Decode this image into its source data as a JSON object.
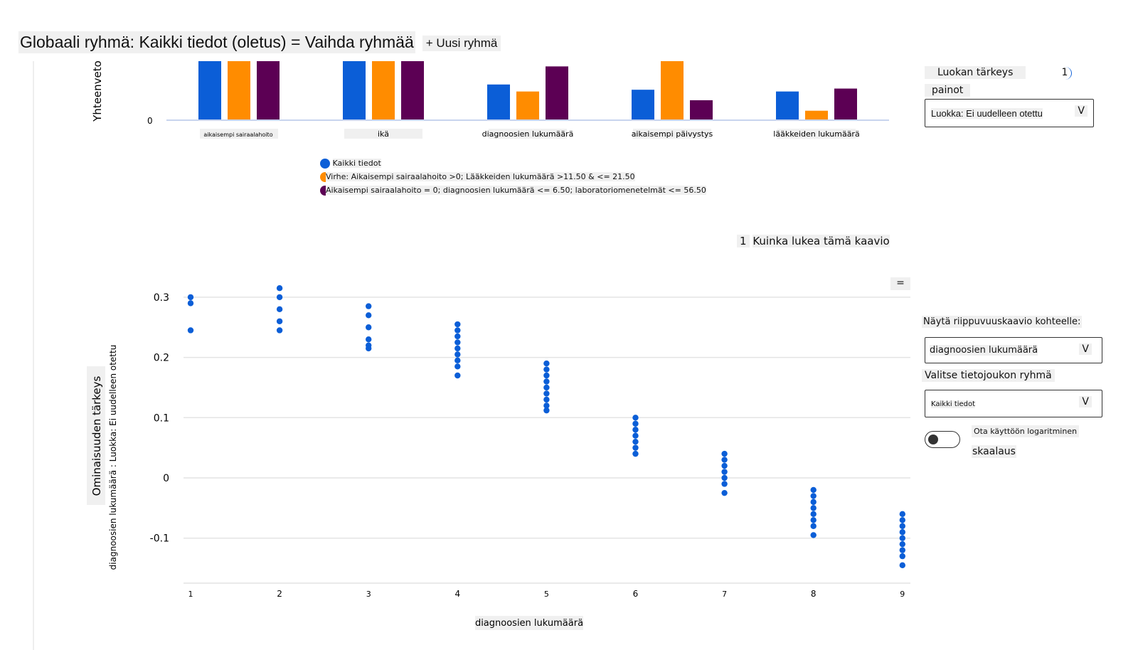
{
  "header": {
    "title": "Globaali ryhmä: Kaikki tiedot (oletus) = Vaihda ryhmää",
    "new_group": "+ Uusi ryhmä"
  },
  "colors": {
    "blue": "#0b5ed7",
    "orange": "#ff8c00",
    "purple": "#5c0054"
  },
  "right_panel": {
    "class_importance": "Luokan tärkeys",
    "info_icon": "1",
    "weights": "painot",
    "class_dropdown": "Luokka: Ei uudelleen otettu",
    "chevron": "V",
    "dependence_label": "Näytä riippuvuuskaavio kohteelle:",
    "feature_dropdown": "diagnoosien lukumäärä",
    "cohort_label": "Valitse tietojoukon ryhmä",
    "cohort_dropdown": "Kaikki tiedot",
    "log_toggle_label_1": "Ota käyttöön logaritminen",
    "log_toggle_label_2": "skaalaus",
    "log_enabled": false
  },
  "how_to_read": {
    "icon": "1",
    "label": "Kuinka lukea tämä kaavio"
  },
  "menu_icon": "=",
  "chart_data": [
    {
      "type": "bar",
      "ylabel": "Yhteenveto",
      "yticks": [
        "0"
      ],
      "categories": [
        "aikaisempi sairaalahoito",
        "ikä",
        "diagnoosien lukumäärä",
        "aikaisempi päivystys",
        "lääkkeiden lukumäärä"
      ],
      "series": [
        {
          "name": "Kaikki tiedot",
          "values": [
            1.0,
            1.0,
            0.6,
            0.51,
            0.48
          ]
        },
        {
          "name": "Virhe: Aikaisempi sairaalahoito >0; Lääkkeiden lukumäärä >11.50 & <= 21.50",
          "values": [
            1.0,
            1.0,
            0.48,
            1.0,
            0.15
          ]
        },
        {
          "name": "Aikaisempi sairaalahoito = 0; diagnoosien lukumäärä <= 6.50; laboratoriomenetelmät <= 56.50",
          "values": [
            1.0,
            1.0,
            0.91,
            0.33,
            0.53
          ]
        }
      ]
    },
    {
      "type": "scatter",
      "xlabel": "diagnoosien lukumäärä",
      "ylabel": "Ominaisuuden tärkeys",
      "ylabel2": "diagnoosien lukumäärä : Luokka: Ei uudelleen otettu",
      "yticks": [
        "0.3",
        "0.2",
        "0.1",
        "0",
        "-0.1"
      ],
      "ytick_values": [
        0.3,
        0.2,
        0.1,
        0,
        -0.1
      ],
      "xticks": [
        "1",
        "2",
        "3",
        "4",
        "5",
        "6",
        "7",
        "8",
        "9"
      ],
      "ylim": [
        -0.16,
        0.32
      ],
      "points": [
        {
          "x": 1,
          "y": [
            0.3,
            0.29,
            0.245
          ]
        },
        {
          "x": 2,
          "y": [
            0.315,
            0.3,
            0.28,
            0.26,
            0.245
          ]
        },
        {
          "x": 3,
          "y": [
            0.285,
            0.27,
            0.25,
            0.23,
            0.22,
            0.215
          ]
        },
        {
          "x": 4,
          "y": [
            0.255,
            0.245,
            0.235,
            0.225,
            0.215,
            0.205,
            0.195,
            0.185,
            0.17
          ]
        },
        {
          "x": 5,
          "y": [
            0.19,
            0.18,
            0.17,
            0.16,
            0.15,
            0.14,
            0.13,
            0.12,
            0.112
          ]
        },
        {
          "x": 6,
          "y": [
            0.1,
            0.09,
            0.08,
            0.07,
            0.06,
            0.05,
            0.04
          ]
        },
        {
          "x": 7,
          "y": [
            0.04,
            0.03,
            0.02,
            0.01,
            0.0,
            -0.01,
            -0.025
          ]
        },
        {
          "x": 8,
          "y": [
            -0.02,
            -0.03,
            -0.04,
            -0.05,
            -0.06,
            -0.07,
            -0.08,
            -0.095
          ]
        },
        {
          "x": 9,
          "y": [
            -0.06,
            -0.07,
            -0.08,
            -0.09,
            -0.1,
            -0.11,
            -0.12,
            -0.13,
            -0.145
          ]
        }
      ]
    }
  ]
}
